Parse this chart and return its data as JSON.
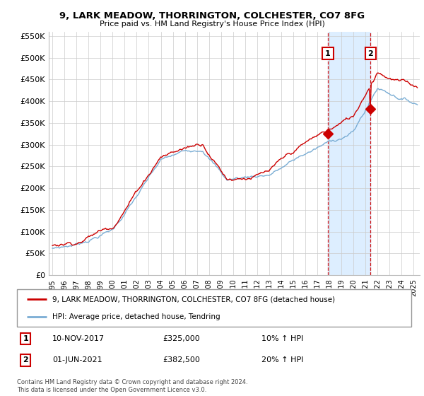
{
  "title": "9, LARK MEADOW, THORRINGTON, COLCHESTER, CO7 8FG",
  "subtitle": "Price paid vs. HM Land Registry's House Price Index (HPI)",
  "legend_label1": "9, LARK MEADOW, THORRINGTON, COLCHESTER, CO7 8FG (detached house)",
  "legend_label2": "HPI: Average price, detached house, Tendring",
  "annotation1_label": "1",
  "annotation1_date": "10-NOV-2017",
  "annotation1_price": "£325,000",
  "annotation1_hpi": "10% ↑ HPI",
  "annotation1_year": 2017.86,
  "annotation1_value": 325000,
  "annotation2_label": "2",
  "annotation2_date": "01-JUN-2021",
  "annotation2_price": "£382,500",
  "annotation2_hpi": "20% ↑ HPI",
  "annotation2_year": 2021.42,
  "annotation2_value": 382500,
  "red_color": "#cc0000",
  "blue_color": "#7aadd4",
  "shaded_color": "#ddeeff",
  "grid_color": "#cccccc",
  "background_color": "#ffffff",
  "footer_text": "Contains HM Land Registry data © Crown copyright and database right 2024.\nThis data is licensed under the Open Government Licence v3.0.",
  "ylim": [
    0,
    560000
  ],
  "yticks": [
    0,
    50000,
    100000,
    150000,
    200000,
    250000,
    300000,
    350000,
    400000,
    450000,
    500000,
    550000
  ],
  "ytick_labels": [
    "£0",
    "£50K",
    "£100K",
    "£150K",
    "£200K",
    "£250K",
    "£300K",
    "£350K",
    "£400K",
    "£450K",
    "£500K",
    "£550K"
  ],
  "xlim_start": 1994.7,
  "xlim_end": 2025.5,
  "xticks": [
    1995,
    1996,
    1997,
    1998,
    1999,
    2000,
    2001,
    2002,
    2003,
    2004,
    2005,
    2006,
    2007,
    2008,
    2009,
    2010,
    2011,
    2012,
    2013,
    2014,
    2015,
    2016,
    2017,
    2018,
    2019,
    2020,
    2021,
    2022,
    2023,
    2024,
    2025
  ]
}
